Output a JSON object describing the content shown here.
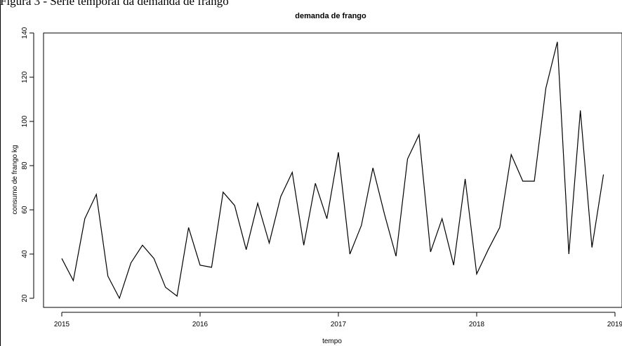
{
  "caption_text": "Figura 3 - Série temporal da demanda de frango",
  "chart_data": {
    "type": "line",
    "title": "demanda de frango",
    "xlabel": "tempo",
    "ylabel": "consumo de frango kg",
    "x_start": 2015.0,
    "x_step": 0.0833333,
    "xlim": [
      2015,
      2019
    ],
    "ylim": [
      20,
      140
    ],
    "x_ticks": [
      2015,
      2016,
      2017,
      2018,
      2019
    ],
    "x_tick_labels": [
      "2015",
      "2016",
      "2017",
      "2018",
      "2019"
    ],
    "y_ticks": [
      20,
      40,
      60,
      80,
      100,
      120,
      140
    ],
    "y_tick_labels": [
      "20",
      "40",
      "60",
      "80",
      "100",
      "120",
      "140"
    ],
    "grid": false,
    "series": [
      {
        "color": "#000000",
        "values": [
          38,
          28,
          56,
          67,
          30,
          20,
          36,
          44,
          38,
          25,
          21,
          52,
          35,
          34,
          68,
          62,
          42,
          63,
          45,
          66,
          77,
          44,
          72,
          56,
          86,
          40,
          53,
          79,
          58,
          39,
          83,
          94,
          41,
          56,
          35,
          74,
          31,
          42,
          52,
          85,
          73,
          73,
          115,
          136,
          40,
          105,
          43,
          76
        ]
      }
    ]
  }
}
